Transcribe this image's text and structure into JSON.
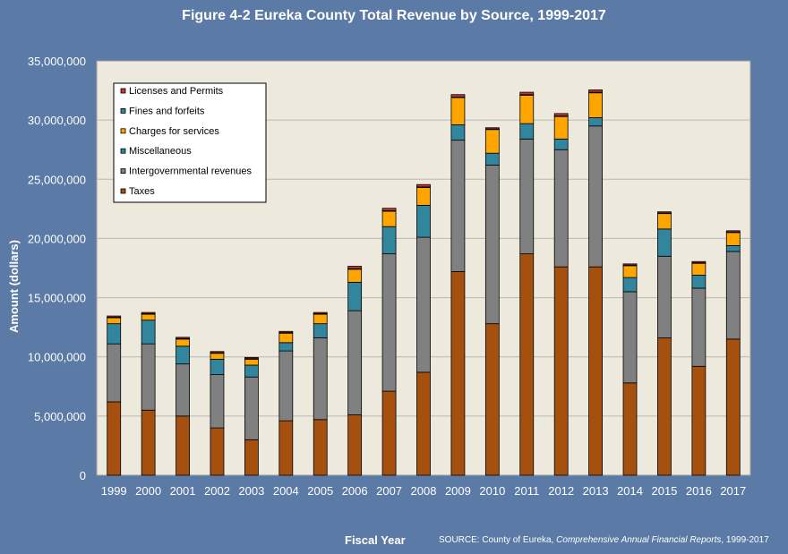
{
  "chart_data": {
    "type": "bar",
    "stacked": true,
    "title": "Figure 4-2 Eureka County Total Revenue by Source, 1999-2017",
    "xlabel": "Fiscal Year",
    "ylabel": "Amount (dollars)",
    "ylim": [
      0,
      35000000
    ],
    "yticks": [
      0,
      5000000,
      10000000,
      15000000,
      20000000,
      25000000,
      30000000,
      35000000
    ],
    "ytick_labels": [
      "0",
      "5,000,000",
      "10,000,000",
      "15,000,000",
      "20,000,000",
      "25,000,000",
      "30,000,000",
      "35,000,000"
    ],
    "grid": true,
    "legend_position": "top-left",
    "categories": [
      "1999",
      "2000",
      "2001",
      "2002",
      "2003",
      "2004",
      "2005",
      "2006",
      "2007",
      "2008",
      "2009",
      "2010",
      "2011",
      "2012",
      "2013",
      "2014",
      "2015",
      "2016",
      "2017"
    ],
    "series": [
      {
        "name": "Taxes",
        "color": "#a5500f",
        "values": [
          6200000,
          5500000,
          5000000,
          4000000,
          3000000,
          4600000,
          4700000,
          5100000,
          7100000,
          8700000,
          17200000,
          12800000,
          18700000,
          17600000,
          17600000,
          7800000,
          11600000,
          9200000,
          11500000
        ]
      },
      {
        "name": "Intergovernmental revenues",
        "color": "#808080",
        "values": [
          4900000,
          5600000,
          4400000,
          4500000,
          5300000,
          5900000,
          6900000,
          8800000,
          11600000,
          11400000,
          11100000,
          13400000,
          9700000,
          9900000,
          11900000,
          7700000,
          6900000,
          6600000,
          7400000
        ]
      },
      {
        "name": "Miscellaneous",
        "color": "#31859c",
        "values": [
          1700000,
          2000000,
          1500000,
          1300000,
          1000000,
          700000,
          1200000,
          2400000,
          2300000,
          2700000,
          1300000,
          1000000,
          1300000,
          900000,
          700000,
          1200000,
          2300000,
          1100000,
          500000
        ]
      },
      {
        "name": "Charges for services",
        "color": "#ffa500",
        "values": [
          500000,
          500000,
          600000,
          500000,
          500000,
          800000,
          800000,
          1100000,
          1300000,
          1500000,
          2300000,
          2000000,
          2400000,
          1900000,
          2100000,
          1000000,
          1300000,
          1000000,
          1100000
        ]
      },
      {
        "name": "Fines and forfeits",
        "color": "#31859c",
        "values": [
          50000,
          50000,
          50000,
          50000,
          50000,
          50000,
          50000,
          50000,
          50000,
          50000,
          50000,
          50000,
          50000,
          50000,
          50000,
          50000,
          50000,
          50000,
          50000
        ]
      },
      {
        "name": "Licenses and Permits",
        "color": "#c0392b",
        "values": [
          100000,
          100000,
          100000,
          100000,
          100000,
          100000,
          100000,
          200000,
          200000,
          200000,
          200000,
          100000,
          200000,
          200000,
          200000,
          100000,
          100000,
          100000,
          100000
        ]
      }
    ],
    "legend_order": [
      "Licenses and Permits",
      "Fines and forfeits",
      "Charges for services",
      "Miscellaneous",
      "Intergovernmental revenues",
      "Taxes"
    ]
  },
  "source": {
    "prefix": "SOURCE: County of Eureka, ",
    "italic": "Comprehensive Annual Financial Reports",
    "suffix": ", 1999-2017"
  },
  "colors": {
    "background": "#5b7aa6",
    "plot_area": "#ede9dc"
  }
}
